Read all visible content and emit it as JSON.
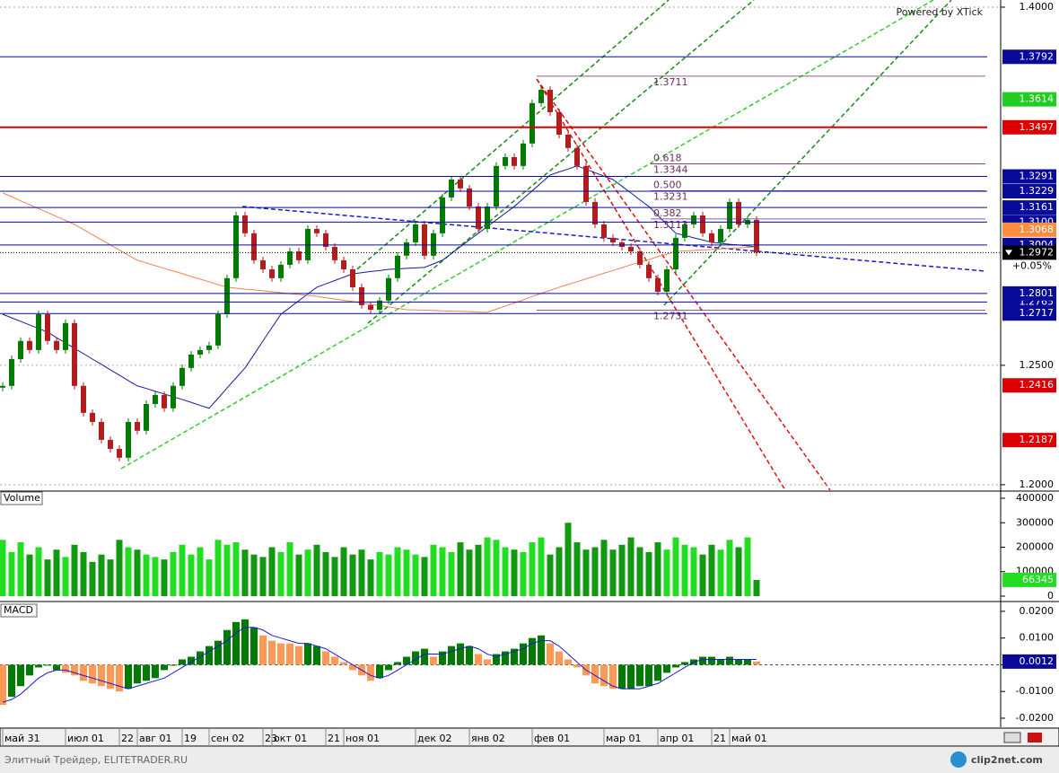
{
  "chart_data": [
    {
      "type": "candlestick",
      "watermark": "Powered by XTick",
      "categories": [
        "май 31",
        null,
        null,
        null,
        null,
        null,
        null,
        "июл 01",
        null,
        null,
        null,
        null,
        null,
        "22",
        null,
        "авг 01",
        null,
        null,
        null,
        null,
        "19",
        null,
        null,
        "сен 02",
        null,
        null,
        null,
        null,
        null,
        "23",
        "окт 01",
        null,
        null,
        null,
        null,
        null,
        "21",
        null,
        "ноя 01",
        null,
        null,
        null,
        null,
        null,
        null,
        null,
        "дек 02",
        null,
        null,
        null,
        null,
        null,
        "янв 02",
        null,
        null,
        null,
        null,
        null,
        null,
        "фев 01",
        null,
        null,
        null,
        null,
        null,
        null,
        null,
        "мар 01",
        null,
        null,
        null,
        null,
        null,
        "апр 01",
        null,
        null,
        null,
        null,
        null,
        "21",
        null,
        "май 01",
        null,
        null,
        null
      ],
      "values": [
        1.2414,
        1.2526,
        1.2602,
        1.2564,
        1.2714,
        1.2602,
        1.2564,
        1.2677,
        1.2414,
        1.2301,
        1.2263,
        1.2188,
        1.215,
        1.2113,
        1.2263,
        1.2226,
        1.2338,
        1.2376,
        1.232,
        1.2414,
        1.2489,
        1.2545,
        1.2564,
        1.2583,
        1.2714,
        1.2865,
        1.3128,
        1.3053,
        1.294,
        1.2902,
        1.2865,
        1.2921,
        1.2977,
        1.294,
        1.3071,
        1.3053,
        1.2996,
        1.294,
        1.2902,
        1.2827,
        1.2752,
        1.2733,
        1.2771,
        1.2865,
        1.2959,
        1.3015,
        1.309,
        1.2959,
        1.3053,
        1.3203,
        1.3278,
        1.3241,
        1.3165,
        1.3071,
        1.3165,
        1.3335,
        1.3372,
        1.3335,
        1.3429,
        1.3598,
        1.3654,
        1.356,
        1.3466,
        1.341,
        1.3335,
        1.3184,
        1.309,
        1.3034,
        1.3015,
        1.2996,
        1.2977,
        1.2921,
        1.2865,
        1.2808,
        1.2902,
        1.3034,
        1.309,
        1.3128,
        1.3053,
        1.3015,
        1.3071,
        1.3184,
        1.309,
        1.3109,
        1.2972
      ],
      "up_color": "#007a00",
      "down_color": "#b01e1e",
      "current_color": "#000000",
      "change": "+0.05%",
      "ylim": [
        1.1977,
        1.403
      ],
      "yticks": [
        {
          "value": 1.4,
          "label": "1.4000"
        },
        {
          "value": 1.25,
          "label": "1.2500"
        },
        {
          "value": 1.2,
          "label": "1.2000"
        }
      ],
      "grid": true,
      "overlays": [
        {
          "color": "#1a1aa0",
          "values": [
            1.2714,
            1.2699,
            1.2684,
            1.2669,
            1.2654,
            1.2639,
            1.2616,
            1.2594,
            1.2571,
            1.2549,
            1.2526,
            1.2504,
            1.2481,
            1.2459,
            1.2436,
            1.2414,
            1.2403,
            1.2391,
            1.238,
            1.2368,
            1.2357,
            1.2345,
            1.2332,
            1.232,
            1.2362,
            1.2405,
            1.2447,
            1.2489,
            1.2545,
            1.2602,
            1.2658,
            1.2714,
            1.2742,
            1.2771,
            1.2799,
            1.2827,
            1.2841,
            1.2855,
            1.2869,
            1.2883,
            1.2888,
            1.2893,
            1.2897,
            1.2902,
            1.2904,
            1.2906,
            1.2908,
            1.291,
            1.2925,
            1.294,
            1.2968,
            1.2997,
            1.3025,
            1.3053,
            1.3081,
            1.3109,
            1.3137,
            1.3165,
            1.3198,
            1.3231,
            1.3264,
            1.3297,
            1.331,
            1.3322,
            1.3335,
            1.3321,
            1.3307,
            1.3292,
            1.3278,
            1.325,
            1.3222,
            1.3193,
            1.3165,
            1.3128,
            1.309,
            1.3053,
            1.3044,
            1.3034,
            1.3025,
            1.3015,
            1.3011,
            1.3007,
            1.3004,
            1.3,
            1.2996
          ]
        },
        {
          "color": "#f08050",
          "values": [
            1.3222,
            1.3206,
            1.3189,
            1.3173,
            1.3156,
            1.314,
            1.3123,
            1.3107,
            1.309,
            1.3069,
            1.3047,
            1.3026,
            1.3004,
            1.2983,
            1.2961,
            1.294,
            1.2929,
            1.2917,
            1.2906,
            1.2895,
            1.2884,
            1.2872,
            1.2861,
            1.285,
            1.2838,
            1.2827,
            1.2823,
            1.2819,
            1.2816,
            1.2812,
            1.2808,
            1.2804,
            1.28,
            1.2797,
            1.2793,
            1.2789,
            1.2783,
            1.2778,
            1.2772,
            1.2767,
            1.2761,
            1.2755,
            1.275,
            1.2744,
            1.2739,
            1.2733,
            1.2732,
            1.2731,
            1.273,
            1.2728,
            1.2727,
            1.2726,
            1.2725,
            1.2723,
            1.2722,
            1.2735,
            1.2748,
            1.2761,
            1.2774,
            1.2788,
            1.2801,
            1.2814,
            1.2827,
            1.2839,
            1.285,
            1.2862,
            1.2874,
            1.2886,
            1.2897,
            1.2909,
            1.2921,
            1.2932,
            1.2943,
            1.2955,
            1.2966,
            1.2977,
            1.2979,
            1.2981,
            1.2983,
            1.2985,
            1.2988,
            1.299,
            1.2992,
            1.2994,
            1.2996
          ]
        }
      ],
      "levels": [
        {
          "value": 1.3792,
          "color": "#0a0a9a",
          "line": true
        },
        {
          "value": 1.3614,
          "color": "#22cc22",
          "line": false
        },
        {
          "value": 1.3497,
          "color": "#dd0000",
          "line": true
        },
        {
          "value": 1.3291,
          "color": "#0a0a9a",
          "line": true
        },
        {
          "value": 1.3229,
          "color": "#0a0a9a",
          "line": true
        },
        {
          "value": 1.3161,
          "color": "#0a0a9a",
          "line": true
        },
        {
          "value": 1.31,
          "label": "1.3100",
          "color": "#0a0a9a",
          "line": true
        },
        {
          "value": 1.3068,
          "color": "#ff8c40",
          "line": false
        },
        {
          "value": 1.3004,
          "color": "#0a0a9a",
          "line": true
        },
        {
          "value": 1.2765,
          "color": "#0a0a9a",
          "line": true
        },
        {
          "value": 1.2801,
          "color": "#0a0a9a",
          "line": true
        },
        {
          "value": 1.2717,
          "color": "#0a0a9a",
          "line": true
        },
        {
          "value": 1.2416,
          "color": "#dd0000",
          "line": false
        },
        {
          "value": 1.2187,
          "color": "#dd0000",
          "line": false
        }
      ],
      "fibonacci": {
        "color": "#6b2a5e",
        "levels": [
          {
            "value": 1.3711
          },
          {
            "value": 1.3344,
            "ratio": 0.618
          },
          {
            "value": 1.3231,
            "ratio": {
              "value": 0.5,
              "label": "0.500"
            }
          },
          {
            "value": 1.3113,
            "ratio": 0.382
          },
          {
            "value": 1.2731
          }
        ]
      }
    },
    {
      "type": "bar",
      "title": "Volume",
      "values": [
        230000,
        180000,
        220000,
        170000,
        200000,
        150000,
        190000,
        160000,
        210000,
        180000,
        140000,
        170000,
        150000,
        230000,
        200000,
        190000,
        170000,
        160000,
        150000,
        180000,
        210000,
        170000,
        200000,
        150000,
        230000,
        210000,
        220000,
        190000,
        170000,
        160000,
        200000,
        180000,
        220000,
        170000,
        190000,
        210000,
        180000,
        160000,
        200000,
        170000,
        190000,
        150000,
        180000,
        170000,
        200000,
        190000,
        170000,
        160000,
        210000,
        200000,
        180000,
        220000,
        190000,
        210000,
        240000,
        230000,
        200000,
        190000,
        180000,
        220000,
        240000,
        170000,
        200000,
        300000,
        220000,
        190000,
        200000,
        230000,
        190000,
        210000,
        240000,
        200000,
        180000,
        220000,
        190000,
        240000,
        210000,
        200000,
        170000,
        210000,
        190000,
        230000,
        200000,
        240000,
        66345
      ],
      "up_color": "#22dd22",
      "down_color": "#119911",
      "ylim": [
        -14700,
        425700
      ],
      "yticks": [
        0,
        100000,
        200000,
        300000,
        400000
      ]
    },
    {
      "type": "macd",
      "title": "MACD",
      "values": [
        -0.015,
        -0.012,
        -0.008,
        -0.004,
        -0.001,
        0,
        -0.002,
        -0.003,
        -0.004,
        -0.006,
        -0.007,
        -0.008,
        -0.009,
        -0.01,
        -0.009,
        -0.007,
        -0.006,
        -0.005,
        -0.002,
        0,
        0.002,
        0.003,
        0.005,
        0.007,
        0.009,
        0.013,
        0.016,
        0.017,
        0.014,
        0.011,
        0.009,
        0.008,
        0.008,
        0.007,
        0.008,
        0.007,
        0.005,
        0.003,
        0.001,
        -0.002,
        -0.004,
        -0.006,
        -0.005,
        -0.002,
        0.001,
        0.003,
        0.005,
        0.006,
        0.003,
        0.005,
        0.007,
        0.008,
        0.007,
        0.004,
        0.002,
        0.004,
        0.005,
        0.006,
        0.008,
        0.01,
        0.011,
        0.008,
        0.005,
        0.002,
        -0.001,
        -0.004,
        -0.007,
        -0.008,
        -0.009,
        -0.009,
        -0.009,
        -0.008,
        -0.008,
        -0.006,
        -0.003,
        -0.001,
        0.001,
        0.002,
        0.003,
        0.003,
        0.002,
        0.003,
        0.002,
        0.002,
        0.0012
      ],
      "signal": [
        -0.014,
        -0.013,
        -0.011,
        -0.008,
        -0.005,
        -0.003,
        -0.002,
        -0.002,
        -0.003,
        -0.004,
        -0.005,
        -0.006,
        -0.007,
        -0.008,
        -0.009,
        -0.008,
        -0.007,
        -0.006,
        -0.005,
        -0.003,
        -0.001,
        0.001,
        0.003,
        0.005,
        0.007,
        0.009,
        0.012,
        0.014,
        0.014,
        0.013,
        0.011,
        0.01,
        0.009,
        0.008,
        0.008,
        0.007,
        0.006,
        0.004,
        0.002,
        0,
        -0.002,
        -0.004,
        -0.005,
        -0.004,
        -0.002,
        0,
        0.002,
        0.004,
        0.004,
        0.004,
        0.005,
        0.006,
        0.007,
        0.006,
        0.004,
        0.003,
        0.004,
        0.005,
        0.006,
        0.008,
        0.009,
        0.009,
        0.007,
        0.004,
        0.001,
        -0.002,
        -0.004,
        -0.006,
        -0.008,
        -0.009,
        -0.009,
        -0.009,
        -0.008,
        -0.007,
        -0.005,
        -0.003,
        -0.001,
        0.001,
        0.002,
        0.002,
        0.002,
        0.002,
        0.002,
        0.002,
        0.002
      ],
      "up_color": "#007a00",
      "down_color": "#ff9955",
      "signal_color": "#1a1ad0",
      "last_color": "#0a0a9a",
      "ylim": [
        -0.0227,
        0.023
      ],
      "yticks": [
        {
          "value": 0.02,
          "label": "0.0200"
        },
        {
          "value": 0.01,
          "label": "0.0100"
        },
        0,
        {
          "value": -0.01,
          "label": "-0.0100"
        },
        {
          "value": -0.02,
          "label": "-0.0200"
        }
      ]
    }
  ],
  "footer": {
    "left": "Элитный Трейдер, ELITETRADER.RU",
    "logo": "clip2net.com"
  }
}
